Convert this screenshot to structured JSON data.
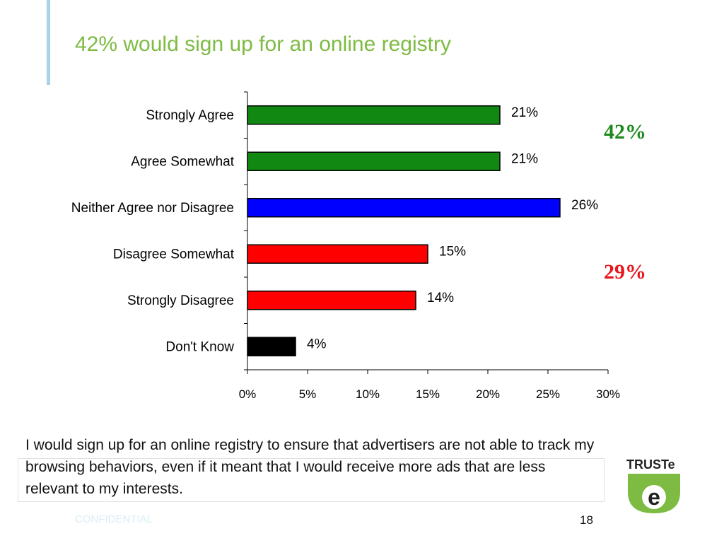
{
  "slide": {
    "title": "42% would sign up for an online registry",
    "caption": "I would sign up for an online registry to ensure that advertisers are not able to track my browsing behaviors, even if it meant that I would receive more ads that are less relevant to my interests.",
    "footer_confidential": "CONFIDENTIAL",
    "page_number": "18",
    "logo_text": "TRUSTe",
    "callouts": {
      "agree_total": "42%",
      "disagree_total": "29%"
    },
    "colors": {
      "title": "#7dbb42",
      "agree_callout": "#1e8a1e",
      "disagree_callout": "#e8171e",
      "logo_green": "#7dbb42"
    }
  },
  "chart_data": {
    "type": "bar",
    "orientation": "horizontal",
    "categories": [
      "Strongly Agree",
      "Agree Somewhat",
      "Neither Agree nor Disagree",
      "Disagree Somewhat",
      "Strongly Disagree",
      "Don't Know"
    ],
    "values": [
      21,
      21,
      26,
      15,
      14,
      4
    ],
    "data_labels": [
      "21%",
      "21%",
      "26%",
      "15%",
      "14%",
      "4%"
    ],
    "colors": [
      "#118811",
      "#118811",
      "#0000ff",
      "#ff0000",
      "#ff0000",
      "#000000"
    ],
    "xlim": [
      0,
      30
    ],
    "xticks": [
      0,
      5,
      10,
      15,
      20,
      25,
      30
    ],
    "xtick_labels": [
      "0%",
      "5%",
      "10%",
      "15%",
      "20%",
      "25%",
      "30%"
    ],
    "grid": false,
    "legend": "none"
  }
}
